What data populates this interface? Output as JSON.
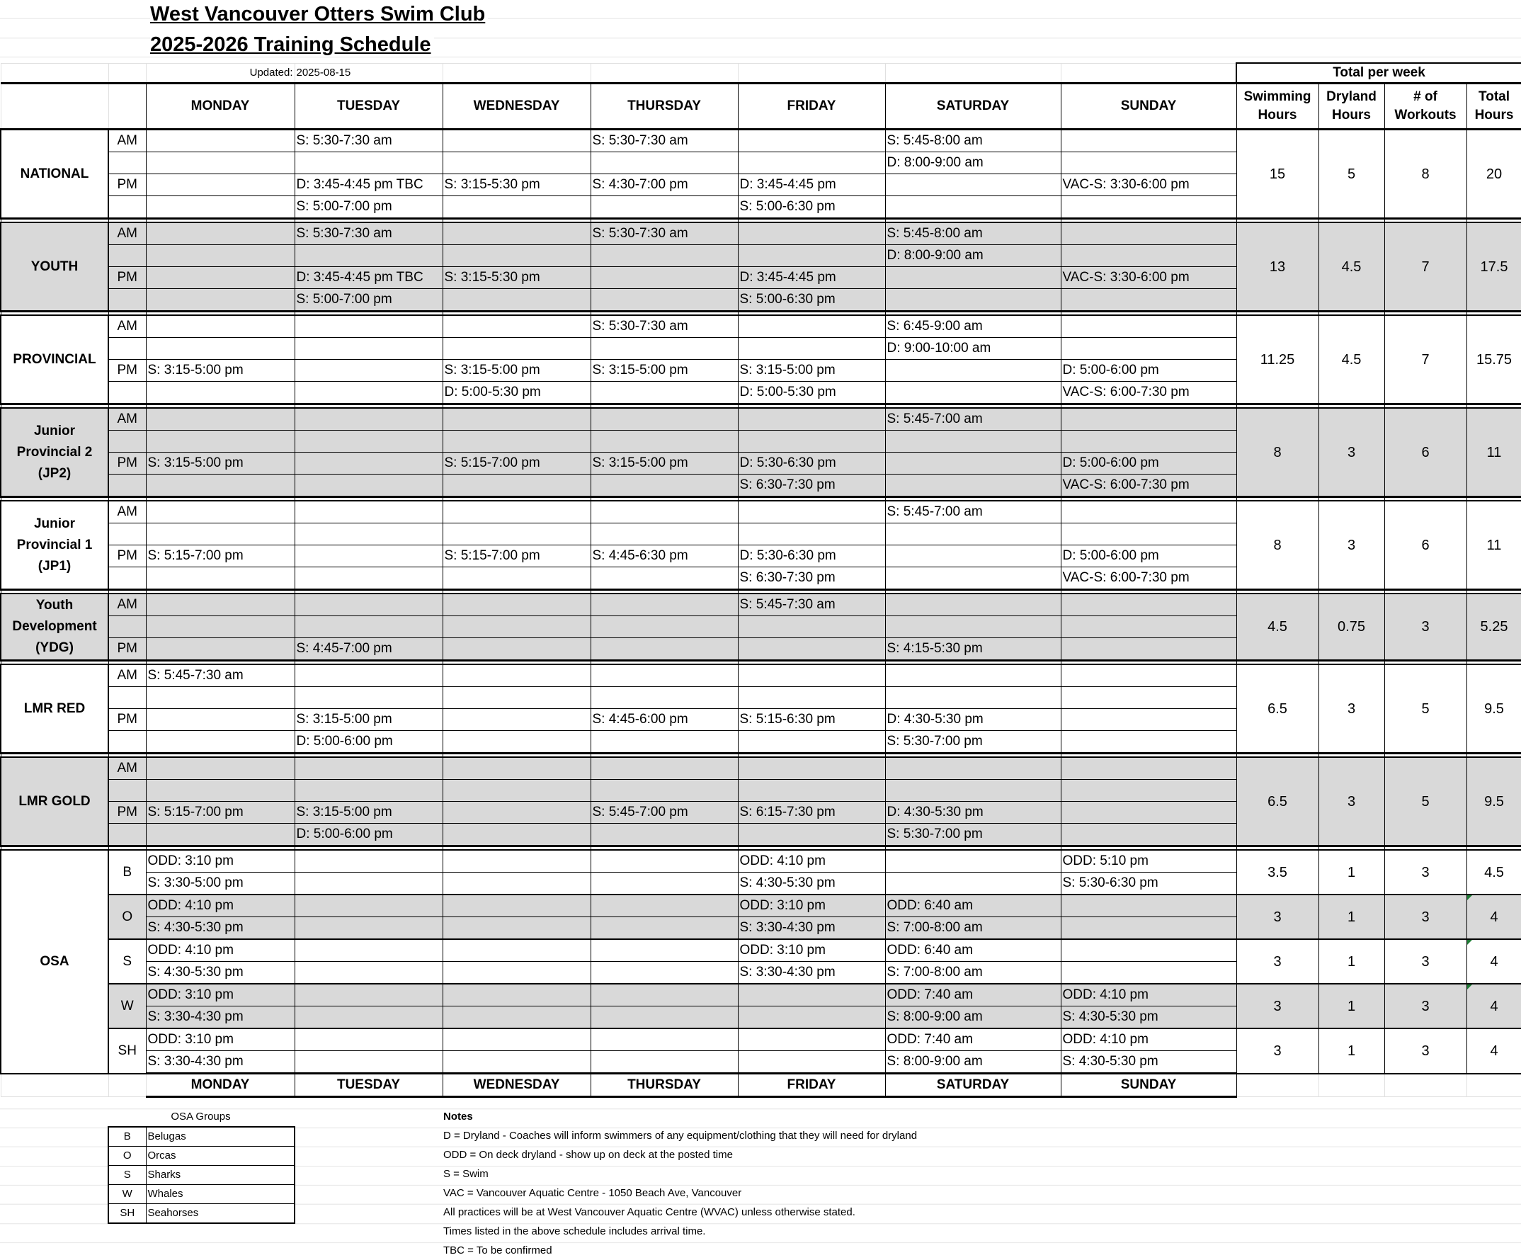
{
  "title": "West Vancouver Otters Swim Club",
  "subtitle": "2025-2026 Training Schedule",
  "updated_label": "Updated:",
  "updated_value": "2025-08-15",
  "days": [
    "MONDAY",
    "TUESDAY",
    "WEDNESDAY",
    "THURSDAY",
    "FRIDAY",
    "SATURDAY",
    "SUNDAY"
  ],
  "totals_header": "Total per week",
  "totals_columns": [
    "Swimming Hours",
    "Dryland Hours",
    "# of Workouts",
    "Total Hours"
  ],
  "colors": {
    "shade": "#d9d9d9",
    "comment_marker": "#1e7b34"
  },
  "groups": [
    {
      "name": "NATIONAL",
      "shaded": false,
      "totals": [
        "15",
        "5",
        "8",
        "20"
      ],
      "rows": [
        {
          "label": "AM",
          "cells": [
            "",
            "S: 5:30-7:30 am",
            "",
            "S: 5:30-7:30 am",
            "",
            "S: 5:45-8:00 am",
            ""
          ]
        },
        {
          "label": "",
          "cells": [
            "",
            "",
            "",
            "",
            "",
            "D: 8:00-9:00 am",
            ""
          ]
        },
        {
          "label": "PM",
          "cells": [
            "",
            "D: 3:45-4:45 pm TBC",
            "S: 3:15-5:30 pm",
            "S: 4:30-7:00 pm",
            "D: 3:45-4:45 pm",
            "",
            "VAC-S: 3:30-6:00 pm"
          ]
        },
        {
          "label": "",
          "cells": [
            "",
            "S: 5:00-7:00 pm",
            "",
            "",
            "S: 5:00-6:30 pm",
            "",
            ""
          ]
        }
      ]
    },
    {
      "name": "YOUTH",
      "shaded": true,
      "totals": [
        "13",
        "4.5",
        "7",
        "17.5"
      ],
      "rows": [
        {
          "label": "AM",
          "cells": [
            "",
            "S: 5:30-7:30 am",
            "",
            "S: 5:30-7:30 am",
            "",
            "S: 5:45-8:00 am",
            ""
          ]
        },
        {
          "label": "",
          "cells": [
            "",
            "",
            "",
            "",
            "",
            "D: 8:00-9:00 am",
            ""
          ]
        },
        {
          "label": "PM",
          "cells": [
            "",
            "D: 3:45-4:45 pm TBC",
            "S: 3:15-5:30 pm",
            "",
            "D: 3:45-4:45 pm",
            "",
            "VAC-S: 3:30-6:00 pm"
          ]
        },
        {
          "label": "",
          "cells": [
            "",
            "S: 5:00-7:00 pm",
            "",
            "",
            "S: 5:00-6:30 pm",
            "",
            ""
          ]
        }
      ]
    },
    {
      "name": "PROVINCIAL",
      "shaded": false,
      "totals": [
        "11.25",
        "4.5",
        "7",
        "15.75"
      ],
      "rows": [
        {
          "label": "AM",
          "cells": [
            "",
            "",
            "",
            "S: 5:30-7:30 am",
            "",
            "S: 6:45-9:00 am",
            ""
          ]
        },
        {
          "label": "",
          "cells": [
            "",
            "",
            "",
            "",
            "",
            "D: 9:00-10:00 am",
            ""
          ]
        },
        {
          "label": "PM",
          "cells": [
            "S: 3:15-5:00 pm",
            "",
            "S: 3:15-5:00 pm",
            "S: 3:15-5:00 pm",
            "S: 3:15-5:00 pm",
            "",
            "D: 5:00-6:00 pm"
          ]
        },
        {
          "label": "",
          "cells": [
            "",
            "",
            "D: 5:00-5:30 pm",
            "",
            "D: 5:00-5:30 pm",
            "",
            "VAC-S: 6:00-7:30 pm"
          ]
        }
      ]
    },
    {
      "name": "Junior Provincial 2 (JP2)",
      "shaded": true,
      "totals": [
        "8",
        "3",
        "6",
        "11"
      ],
      "rows": [
        {
          "label": "AM",
          "cells": [
            "",
            "",
            "",
            "",
            "",
            "S: 5:45-7:00 am",
            ""
          ]
        },
        {
          "label": "",
          "cells": [
            "",
            "",
            "",
            "",
            "",
            "",
            ""
          ]
        },
        {
          "label": "PM",
          "cells": [
            "S: 3:15-5:00 pm",
            "",
            "S: 5:15-7:00 pm",
            "S: 3:15-5:00 pm",
            "D: 5:30-6:30 pm",
            "",
            "D: 5:00-6:00 pm"
          ]
        },
        {
          "label": "",
          "cells": [
            "",
            "",
            "",
            "",
            "S: 6:30-7:30 pm",
            "",
            "VAC-S: 6:00-7:30 pm"
          ]
        }
      ]
    },
    {
      "name": "Junior Provincial 1 (JP1)",
      "shaded": false,
      "totals": [
        "8",
        "3",
        "6",
        "11"
      ],
      "rows": [
        {
          "label": "AM",
          "cells": [
            "",
            "",
            "",
            "",
            "",
            "S: 5:45-7:00 am",
            ""
          ]
        },
        {
          "label": "",
          "cells": [
            "",
            "",
            "",
            "",
            "",
            "",
            ""
          ]
        },
        {
          "label": "PM",
          "cells": [
            "S: 5:15-7:00 pm",
            "",
            "S: 5:15-7:00 pm",
            "S: 4:45-6:30 pm",
            "D: 5:30-6:30 pm",
            "",
            "D: 5:00-6:00 pm"
          ]
        },
        {
          "label": "",
          "cells": [
            "",
            "",
            "",
            "",
            "S: 6:30-7:30 pm",
            "",
            "VAC-S: 6:00-7:30 pm"
          ]
        }
      ]
    },
    {
      "name": "Youth Development (YDG)",
      "shaded": true,
      "totals": [
        "4.5",
        "0.75",
        "3",
        "5.25"
      ],
      "rows": [
        {
          "label": "AM",
          "cells": [
            "",
            "",
            "",
            "",
            "S: 5:45-7:30 am",
            "",
            ""
          ]
        },
        {
          "label": "",
          "cells": [
            "",
            "",
            "",
            "",
            "",
            "",
            ""
          ]
        },
        {
          "label": "PM",
          "cells": [
            "",
            "S: 4:45-7:00 pm",
            "",
            "",
            "",
            "S: 4:15-5:30 pm",
            ""
          ]
        }
      ]
    },
    {
      "name": "LMR RED",
      "shaded": false,
      "totals": [
        "6.5",
        "3",
        "5",
        "9.5"
      ],
      "rows": [
        {
          "label": "AM",
          "cells": [
            "S: 5:45-7:30 am",
            "",
            "",
            "",
            "",
            "",
            ""
          ]
        },
        {
          "label": "",
          "cells": [
            "",
            "",
            "",
            "",
            "",
            "",
            ""
          ]
        },
        {
          "label": "PM",
          "cells": [
            "",
            "S: 3:15-5:00 pm",
            "",
            "S: 4:45-6:00 pm",
            "S: 5:15-6:30 pm",
            "D: 4:30-5:30 pm",
            ""
          ]
        },
        {
          "label": "",
          "cells": [
            "",
            "D: 5:00-6:00 pm",
            "",
            "",
            "",
            "S: 5:30-7:00 pm",
            ""
          ]
        }
      ]
    },
    {
      "name": "LMR GOLD",
      "shaded": true,
      "totals": [
        "6.5",
        "3",
        "5",
        "9.5"
      ],
      "rows": [
        {
          "label": "AM",
          "cells": [
            "",
            "",
            "",
            "",
            "",
            "",
            ""
          ]
        },
        {
          "label": "",
          "cells": [
            "",
            "",
            "",
            "",
            "",
            "",
            ""
          ]
        },
        {
          "label": "PM",
          "cells": [
            "S: 5:15-7:00 pm",
            "S: 3:15-5:00 pm",
            "",
            "S: 5:45-7:00 pm",
            "S: 6:15-7:30 pm",
            "D: 4:30-5:30 pm",
            ""
          ]
        },
        {
          "label": "",
          "cells": [
            "",
            "D: 5:00-6:00 pm",
            "",
            "",
            "",
            "S: 5:30-7:00 pm",
            ""
          ]
        }
      ]
    }
  ],
  "osa": {
    "name": "OSA",
    "subgroups": [
      {
        "code": "B",
        "shaded": false,
        "marker": false,
        "totals": [
          "3.5",
          "1",
          "3",
          "4.5"
        ],
        "rows": [
          [
            "ODD: 3:10 pm",
            "",
            "",
            "",
            "ODD: 4:10 pm",
            "",
            "ODD: 5:10 pm"
          ],
          [
            "S: 3:30-5:00 pm",
            "",
            "",
            "",
            "S: 4:30-5:30 pm",
            "",
            "S: 5:30-6:30 pm"
          ]
        ]
      },
      {
        "code": "O",
        "shaded": true,
        "marker": true,
        "totals": [
          "3",
          "1",
          "3",
          "4"
        ],
        "rows": [
          [
            "ODD: 4:10 pm",
            "",
            "",
            "",
            "ODD: 3:10 pm",
            "ODD: 6:40 am",
            ""
          ],
          [
            "S: 4:30-5:30 pm",
            "",
            "",
            "",
            "S: 3:30-4:30 pm",
            "S: 7:00-8:00 am",
            ""
          ]
        ]
      },
      {
        "code": "S",
        "shaded": false,
        "marker": true,
        "totals": [
          "3",
          "1",
          "3",
          "4"
        ],
        "rows": [
          [
            "ODD: 4:10 pm",
            "",
            "",
            "",
            "ODD: 3:10 pm",
            "ODD: 6:40 am",
            ""
          ],
          [
            "S: 4:30-5:30 pm",
            "",
            "",
            "",
            "S: 3:30-4:30 pm",
            "S: 7:00-8:00 am",
            ""
          ]
        ]
      },
      {
        "code": "W",
        "shaded": true,
        "marker": true,
        "totals": [
          "3",
          "1",
          "3",
          "4"
        ],
        "rows": [
          [
            "ODD: 3:10 pm",
            "",
            "",
            "",
            "",
            "ODD: 7:40 am",
            "ODD: 4:10 pm"
          ],
          [
            "S: 3:30-4:30 pm",
            "",
            "",
            "",
            "",
            "S: 8:00-9:00 am",
            "S: 4:30-5:30 pm"
          ]
        ]
      },
      {
        "code": "SH",
        "shaded": false,
        "marker": false,
        "totals": [
          "3",
          "1",
          "3",
          "4"
        ],
        "rows": [
          [
            "ODD: 3:10 pm",
            "",
            "",
            "",
            "",
            "ODD: 7:40 am",
            "ODD: 4:10 pm"
          ],
          [
            "S: 3:30-4:30 pm",
            "",
            "",
            "",
            "",
            "S: 8:00-9:00 am",
            "S: 4:30-5:30 pm"
          ]
        ]
      }
    ]
  },
  "osa_groups": {
    "title": "OSA Groups",
    "items": [
      {
        "code": "B",
        "name": "Belugas"
      },
      {
        "code": "O",
        "name": "Orcas"
      },
      {
        "code": "S",
        "name": "Sharks"
      },
      {
        "code": "W",
        "name": "Whales"
      },
      {
        "code": "SH",
        "name": "Seahorses"
      }
    ]
  },
  "notes": {
    "title": "Notes",
    "items": [
      "D = Dryland - Coaches will inform swimmers of any equipment/clothing that they will need for dryland",
      "ODD = On deck dryland - show up on deck at the posted time",
      "S = Swim",
      "VAC = Vancouver Aquatic Centre - 1050 Beach Ave, Vancouver",
      "All practices will be at West Vancouver Aquatic Centre (WVAC) unless otherwise stated.",
      "Times listed in the above schedule includes arrival time.",
      "TBC = To be confirmed"
    ]
  }
}
